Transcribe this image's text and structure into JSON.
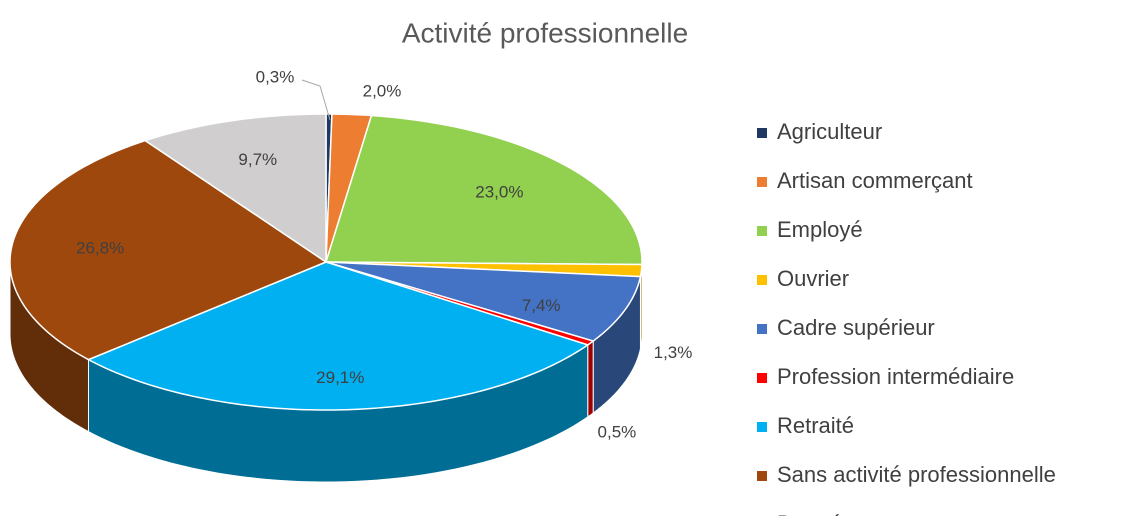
{
  "chart_data": {
    "type": "pie3d",
    "title": "Activité professionnelle",
    "categories": [
      "Agriculteur",
      "Artisan commerçant",
      "Employé",
      "Ouvrier",
      "Cadre supérieur",
      "Profession intermédiaire",
      "Retraité",
      "Sans activité professionnelle",
      "Donnée manquante"
    ],
    "values": [
      0.3,
      2.0,
      23.0,
      1.3,
      7.4,
      0.5,
      29.1,
      26.8,
      9.7
    ],
    "value_labels": [
      "0,3%",
      "2,0%",
      "23,0%",
      "1,3%",
      "7,4%",
      "0,5%",
      "29,1%",
      "26,8%",
      "9,7%"
    ],
    "colors": [
      "#1f3864",
      "#ed7d31",
      "#92d050",
      "#ffc000",
      "#4472c4",
      "#ff0000",
      "#00b0f0",
      "#9e480e",
      "#d0cece"
    ],
    "legend": "right"
  }
}
